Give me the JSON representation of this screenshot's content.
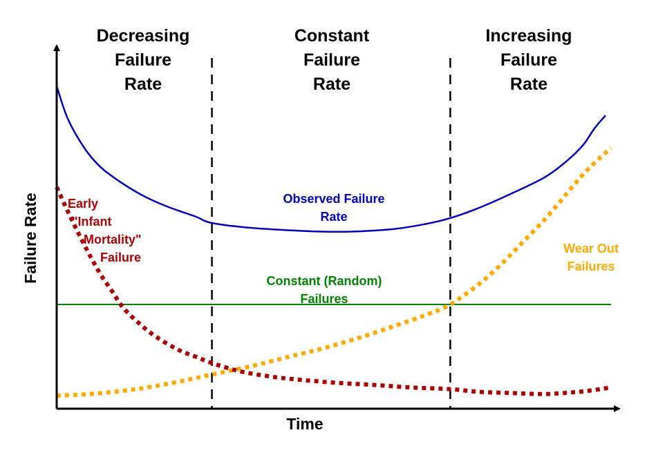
{
  "chart_data": {
    "type": "line",
    "title": "",
    "xlabel": "Time",
    "ylabel": "Failure Rate",
    "xlim": [
      0,
      100
    ],
    "ylim": [
      0,
      100
    ],
    "grid": false,
    "phases": [
      {
        "lines": [
          "Decreasing",
          "Failure",
          "Rate"
        ],
        "x_start": 0,
        "x_end": 28
      },
      {
        "lines": [
          "Constant",
          "Failure",
          "Rate"
        ],
        "x_start": 28,
        "x_end": 71
      },
      {
        "lines": [
          "Increasing",
          "Failure",
          "Rate"
        ],
        "x_start": 71,
        "x_end": 100
      }
    ],
    "boundaries": [
      28,
      71
    ],
    "series": [
      {
        "name": "Observed Failure Rate",
        "label_lines": [
          "Observed Failure",
          "Rate"
        ],
        "color": "#0000bb",
        "style": "solid",
        "x": [
          0,
          2,
          5,
          8,
          12,
          16,
          20,
          25,
          28,
          35,
          45,
          52,
          60,
          66,
          71,
          76,
          82,
          88,
          92,
          95,
          97,
          99
        ],
        "values": [
          99,
          89,
          80,
          74,
          69,
          65,
          62,
          59,
          57,
          55.5,
          54.5,
          54.3,
          55,
          56.5,
          58.5,
          61.5,
          66,
          71,
          76,
          81,
          86,
          90
        ]
      },
      {
        "name": "Early \"Infant Mortality\" Failure",
        "label_lines": [
          "Early",
          "\"Infant",
          "Mortality\"",
          "Failure"
        ],
        "color": "#aa0000",
        "style": "dotted",
        "x": [
          0,
          3,
          6,
          8,
          10,
          12,
          15,
          18,
          22,
          25,
          28,
          33,
          38,
          43,
          50,
          57,
          64,
          71,
          76,
          82,
          88,
          93,
          96,
          100
        ],
        "values": [
          68,
          57,
          47,
          41,
          36,
          31,
          26,
          22,
          18,
          16,
          14,
          11.5,
          10,
          9,
          8,
          7.3,
          6.5,
          6,
          5.2,
          4.8,
          4.5,
          5,
          5.5,
          6.5
        ]
      },
      {
        "name": "Constant (Random) Failures",
        "label_lines": [
          "Constant (Random)",
          "Failures"
        ],
        "color": "#008000",
        "style": "solid",
        "x": [
          0,
          100
        ],
        "values": [
          32,
          32
        ]
      },
      {
        "name": "Wear Out Failures",
        "label_lines": [
          "Wear Out",
          "Failures"
        ],
        "color": "#ffaa00",
        "style": "dotted",
        "x": [
          0,
          6,
          12,
          18,
          24,
          28,
          35,
          42,
          48,
          55,
          62,
          67,
          71,
          76,
          80,
          84,
          88,
          92,
          95,
          98,
          100
        ],
        "values": [
          4,
          4.5,
          5.5,
          7,
          9,
          10.5,
          13,
          16,
          18.5,
          22,
          26,
          29,
          32,
          38,
          44,
          51,
          58,
          66,
          72,
          77,
          80
        ]
      }
    ]
  }
}
